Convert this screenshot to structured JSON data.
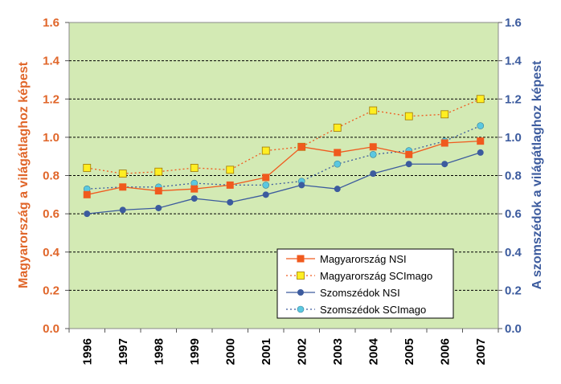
{
  "chart_data": {
    "type": "line",
    "categories": [
      "1996",
      "1997",
      "1998",
      "1999",
      "2000",
      "2001",
      "2002",
      "2003",
      "2004",
      "2005",
      "2006",
      "2007"
    ],
    "ylabel": "Magyarország a világátlaghoz képest",
    "y2label": "A szomszédok a világátlaghoz képest",
    "ylim": [
      0,
      1.6
    ],
    "y2lim": [
      0,
      1.6
    ],
    "yticks": [
      "0.0",
      "0.2",
      "0.4",
      "0.6",
      "0.8",
      "1.0",
      "1.2",
      "1.4",
      "1.6"
    ],
    "y2ticks": [
      "0.0",
      "0.2",
      "0.4",
      "0.6",
      "0.8",
      "1.0",
      "1.2",
      "1.4",
      "1.6"
    ],
    "grid": true,
    "legend_position": "bottom-right",
    "series": [
      {
        "name": "Magyarország NSI",
        "values": [
          0.7,
          0.74,
          0.72,
          0.73,
          0.75,
          0.79,
          0.95,
          0.92,
          0.95,
          0.91,
          0.97,
          0.98
        ],
        "color": "#f05a1e",
        "marker": "square",
        "line": "solid",
        "line_color": "#f05a1e"
      },
      {
        "name": "Magyarország SCImago",
        "values": [
          0.84,
          0.81,
          0.82,
          0.84,
          0.83,
          0.93,
          0.95,
          1.05,
          1.14,
          1.11,
          1.12,
          1.2
        ],
        "color": "#ffee22",
        "marker": "square",
        "line": "dotted",
        "line_color": "#f05a1e"
      },
      {
        "name": "Szomszédok NSI",
        "values": [
          0.6,
          0.62,
          0.63,
          0.68,
          0.66,
          0.7,
          0.75,
          0.73,
          0.81,
          0.86,
          0.86,
          0.92
        ],
        "color": "#3c5b9e",
        "marker": "circle",
        "line": "solid",
        "line_color": "#3c5b9e"
      },
      {
        "name": "Szomszédok SCImago",
        "values": [
          0.73,
          0.74,
          0.74,
          0.76,
          0.75,
          0.75,
          0.77,
          0.86,
          0.91,
          0.93,
          0.98,
          1.06
        ],
        "color": "#5bc8e0",
        "marker": "circle",
        "line": "dotted",
        "line_color": "#3c5b9e"
      }
    ]
  },
  "colors": {
    "plot_background": "#d3eab4",
    "left_axis": "#e0662a",
    "right_axis": "#3c5b9e"
  }
}
